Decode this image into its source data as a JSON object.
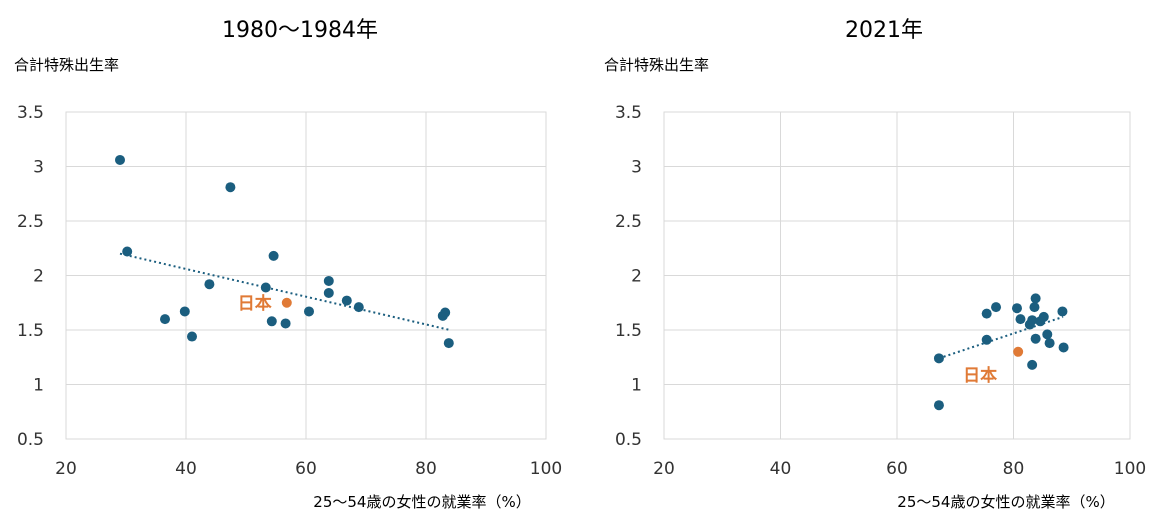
{
  "colors": {
    "point": "#1b5e7f",
    "japan": "#e07a36",
    "trend": "#1b5e7f",
    "grid": "#d9d9d9"
  },
  "chart_data": [
    {
      "type": "scatter",
      "title": "1980～1984年",
      "ylabel": "合計特殊出生率",
      "xlabel": "25～54歳の女性の就業率（%）",
      "xlim": [
        20,
        100
      ],
      "ylim": [
        0.5,
        3.5
      ],
      "xticks": [
        "20",
        "40",
        "60",
        "80",
        "100"
      ],
      "yticks": [
        "0.5",
        "1",
        "1.5",
        "2",
        "2.5",
        "3",
        "3.5"
      ],
      "grid": true,
      "points": [
        {
          "x": 29,
          "y": 3.06
        },
        {
          "x": 30.2,
          "y": 2.22
        },
        {
          "x": 47.4,
          "y": 2.81
        },
        {
          "x": 36.5,
          "y": 1.6
        },
        {
          "x": 39.8,
          "y": 1.67
        },
        {
          "x": 41,
          "y": 1.44
        },
        {
          "x": 43.9,
          "y": 1.92
        },
        {
          "x": 53.3,
          "y": 1.89
        },
        {
          "x": 54.6,
          "y": 2.18
        },
        {
          "x": 54.3,
          "y": 1.58
        },
        {
          "x": 56.6,
          "y": 1.56
        },
        {
          "x": 60.5,
          "y": 1.67
        },
        {
          "x": 63.8,
          "y": 1.95
        },
        {
          "x": 63.8,
          "y": 1.84
        },
        {
          "x": 66.8,
          "y": 1.77
        },
        {
          "x": 68.8,
          "y": 1.71
        },
        {
          "x": 82.8,
          "y": 1.63
        },
        {
          "x": 83.2,
          "y": 1.66
        },
        {
          "x": 83.8,
          "y": 1.38
        }
      ],
      "highlight": {
        "label": "日本",
        "x": 56.8,
        "y": 1.75
      },
      "trendline": {
        "x": [
          29,
          84
        ],
        "y": [
          2.2,
          1.5
        ]
      }
    },
    {
      "type": "scatter",
      "title": "2021年",
      "ylabel": "合計特殊出生率",
      "xlabel": "25～54歳の女性の就業率（%）",
      "xlim": [
        20,
        100
      ],
      "ylim": [
        0.5,
        3.5
      ],
      "xticks": [
        "20",
        "40",
        "60",
        "80",
        "100"
      ],
      "yticks": [
        "0.5",
        "1",
        "1.5",
        "2",
        "2.5",
        "3",
        "3.5"
      ],
      "grid": true,
      "points": [
        {
          "x": 67.2,
          "y": 0.81
        },
        {
          "x": 67.2,
          "y": 1.24
        },
        {
          "x": 75.4,
          "y": 1.65
        },
        {
          "x": 75.4,
          "y": 1.41
        },
        {
          "x": 77,
          "y": 1.71
        },
        {
          "x": 80.6,
          "y": 1.7
        },
        {
          "x": 81.2,
          "y": 1.6
        },
        {
          "x": 82.8,
          "y": 1.55
        },
        {
          "x": 83.2,
          "y": 1.59
        },
        {
          "x": 83.6,
          "y": 1.71
        },
        {
          "x": 83.8,
          "y": 1.79
        },
        {
          "x": 83.8,
          "y": 1.42
        },
        {
          "x": 84.6,
          "y": 1.58
        },
        {
          "x": 85.2,
          "y": 1.62
        },
        {
          "x": 85.8,
          "y": 1.46
        },
        {
          "x": 86.2,
          "y": 1.38
        },
        {
          "x": 88.4,
          "y": 1.67
        },
        {
          "x": 88.6,
          "y": 1.34
        },
        {
          "x": 83.2,
          "y": 1.18
        }
      ],
      "highlight": {
        "label": "日本",
        "x": 80.8,
        "y": 1.3
      },
      "trendline": {
        "x": [
          67.2,
          88.5
        ],
        "y": [
          1.24,
          1.62
        ]
      }
    }
  ]
}
